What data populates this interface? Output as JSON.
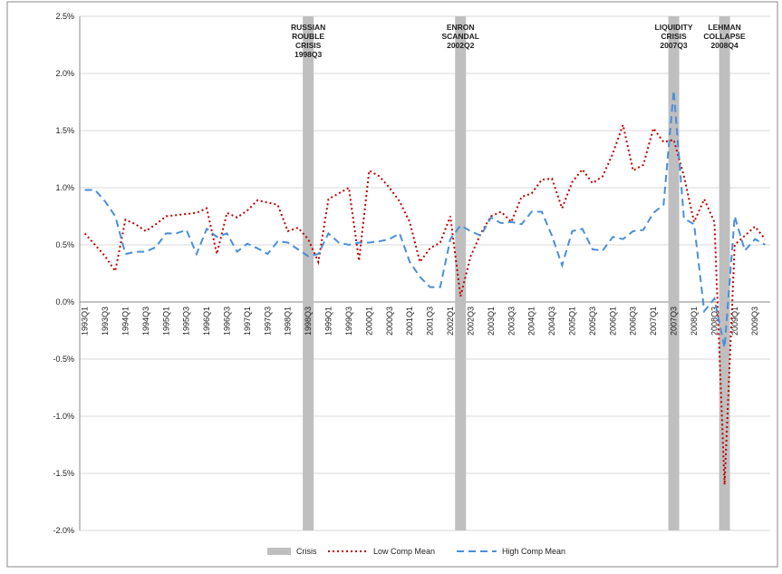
{
  "chart_data": {
    "type": "line",
    "categories": [
      "1993Q1",
      null,
      "1993Q3",
      null,
      "1994Q1",
      null,
      "1994Q3",
      null,
      "1995Q1",
      null,
      "1995Q3",
      null,
      "1996Q1",
      null,
      "1996Q3",
      null,
      "1997Q1",
      null,
      "1997Q3",
      null,
      "1998Q1",
      null,
      "1998Q3",
      null,
      "1999Q1",
      null,
      "1999Q3",
      null,
      "2000Q1",
      null,
      "2000Q3",
      null,
      "2001Q1",
      null,
      "2001Q3",
      null,
      "2002Q1",
      null,
      "2002Q3",
      null,
      "2003Q1",
      null,
      "2003Q3",
      null,
      "2004Q1",
      null,
      "2004Q3",
      null,
      "2005Q1",
      null,
      "2005Q3",
      null,
      "2006Q1",
      null,
      "2006Q3",
      null,
      "2007Q1",
      null,
      "2007Q3",
      null,
      "2008Q1",
      null,
      "2008Q3",
      null,
      "2009Q1",
      null,
      "2009Q3",
      null
    ],
    "series": [
      {
        "name": "Low Comp Mean",
        "color": "#c00000",
        "dash": "2,3",
        "values": [
          0.6,
          0.5,
          0.4,
          0.27,
          0.72,
          0.68,
          0.62,
          0.68,
          0.75,
          0.76,
          0.77,
          0.78,
          0.82,
          0.42,
          0.78,
          0.74,
          0.8,
          0.89,
          0.87,
          0.85,
          0.62,
          0.65,
          0.55,
          0.35,
          0.9,
          0.95,
          1.0,
          0.36,
          1.15,
          1.1,
          1.0,
          0.88,
          0.7,
          0.35,
          0.47,
          0.52,
          0.75,
          0.05,
          0.4,
          0.6,
          0.75,
          0.79,
          0.7,
          0.92,
          0.95,
          1.07,
          1.08,
          0.82,
          1.05,
          1.16,
          1.04,
          1.1,
          1.3,
          1.55,
          1.15,
          1.2,
          1.52,
          1.4,
          1.42,
          1.1,
          0.7,
          0.9,
          0.7,
          -1.6,
          0.5,
          0.58,
          0.66,
          0.55
        ]
      },
      {
        "name": "High Comp Mean",
        "color": "#4a8fd9",
        "dash": "8,5",
        "values": [
          0.98,
          0.98,
          0.88,
          0.75,
          0.42,
          0.44,
          0.44,
          0.48,
          0.6,
          0.6,
          0.63,
          0.42,
          0.64,
          0.57,
          0.6,
          0.44,
          0.51,
          0.47,
          0.42,
          0.53,
          0.52,
          0.46,
          0.4,
          0.42,
          0.6,
          0.52,
          0.5,
          0.52,
          0.52,
          0.53,
          0.55,
          0.6,
          0.35,
          0.22,
          0.13,
          0.13,
          0.55,
          0.67,
          0.62,
          0.58,
          0.74,
          0.69,
          0.7,
          0.68,
          0.79,
          0.79,
          0.58,
          0.32,
          0.62,
          0.64,
          0.46,
          0.45,
          0.57,
          0.55,
          0.62,
          0.63,
          0.78,
          0.85,
          1.85,
          0.73,
          0.68,
          -0.08,
          0.03,
          -0.4,
          0.75,
          0.45,
          0.55,
          0.5
        ]
      }
    ],
    "crisis": {
      "name": "Crisis",
      "color": "#bfbfbf",
      "events": [
        [
          "RUSSIAN",
          "ROUBLE",
          "CRISIS",
          "1998Q3"
        ],
        [
          "ENRON",
          "SCANDAL",
          "2002Q2"
        ],
        [
          "LIQUIDITY",
          "CRISIS",
          "2007Q3"
        ],
        [
          "LEHMAN",
          "COLLAPSE",
          "2008Q4"
        ]
      ]
    },
    "ylim": [
      -2.0,
      2.5
    ],
    "yticks": [
      {
        "value": -2.0,
        "label": "-2.0%"
      },
      {
        "value": -1.5,
        "label": "-1.5%"
      },
      {
        "value": -1.0,
        "label": "-1.0%"
      },
      {
        "value": -0.5,
        "label": "-0.5%"
      },
      {
        "value": 0,
        "label": "0.0%"
      },
      {
        "value": 0.5,
        "label": "0.5%"
      },
      {
        "value": 1.0,
        "label": "1.0%"
      },
      {
        "value": 1.5,
        "label": "1.5%"
      },
      {
        "value": 2.0,
        "label": "2.0%"
      },
      {
        "value": 2.5,
        "label": "2.5%"
      }
    ],
    "grid": true,
    "legend": "bottom"
  }
}
